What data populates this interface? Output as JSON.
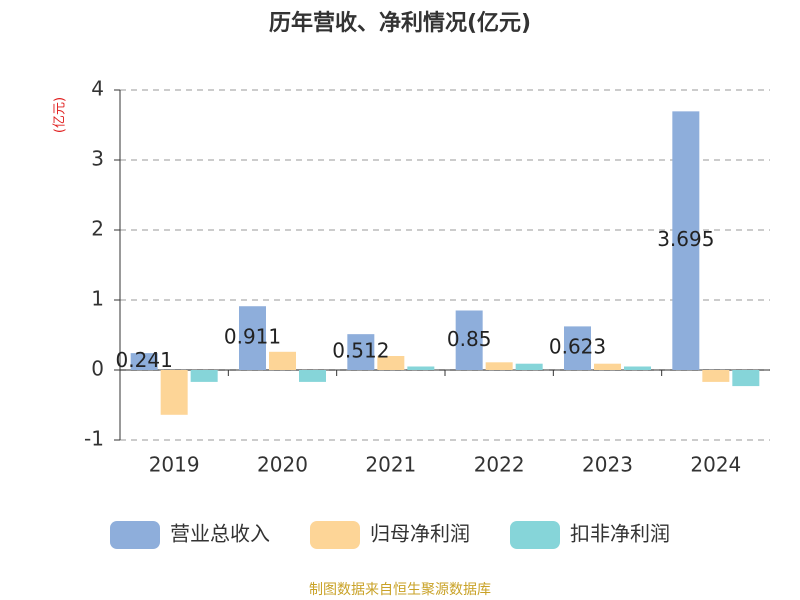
{
  "chart_data": {
    "type": "bar",
    "title": "历年营收、净利情况(亿元)",
    "y_label": "(亿元)",
    "source": "制图数据来自恒生聚源数据库",
    "categories": [
      "2019",
      "2020",
      "2021",
      "2022",
      "2023",
      "2024"
    ],
    "series": [
      {
        "name": "营业总收入",
        "color": "#8eaedb",
        "values": [
          0.241,
          0.911,
          0.512,
          0.85,
          0.623,
          3.695
        ]
      },
      {
        "name": "归母净利润",
        "color": "#fdd597",
        "values": [
          -0.64,
          0.26,
          0.2,
          0.11,
          0.09,
          -0.17
        ]
      },
      {
        "name": "扣非净利润",
        "color": "#86d5d9",
        "values": [
          -0.17,
          -0.17,
          0.05,
          0.09,
          0.05,
          -0.23
        ]
      }
    ],
    "ylim": [
      -1,
      4
    ],
    "yticks": [
      -1,
      0,
      1,
      2,
      3,
      4
    ],
    "grid": true
  }
}
